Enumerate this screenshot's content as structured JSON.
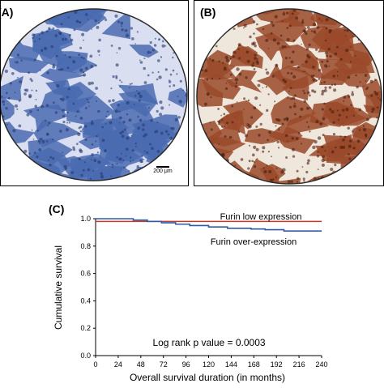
{
  "panels": {
    "a": {
      "label": "(A)",
      "scale_bar": "200 μm"
    },
    "b": {
      "label": "(B)"
    },
    "c": {
      "label": "(C)"
    }
  },
  "colors": {
    "stain_a_tissue": "#4a6bb0",
    "stain_b_tissue": "#9a4a2a",
    "low_expression_line": "#c0392b",
    "over_expression_line": "#2f5aa8"
  },
  "chart_data": {
    "type": "line",
    "title": "",
    "xlabel": "Overall survival duration (in months)",
    "ylabel": "Cumulative survival",
    "xlim": [
      0,
      240
    ],
    "ylim": [
      0.0,
      1.0
    ],
    "xticks": [
      0,
      24,
      48,
      72,
      96,
      120,
      144,
      168,
      192,
      216,
      240
    ],
    "yticks": [
      "0.0",
      "0.2",
      "0.4",
      "0.6",
      "0.8",
      "1.0"
    ],
    "series": [
      {
        "name": "Furin low expression",
        "x": [
          0,
          240
        ],
        "y": [
          0.98,
          0.98
        ]
      },
      {
        "name": "Furin over-expression",
        "x": [
          0,
          20,
          40,
          55,
          70,
          85,
          100,
          120,
          140,
          165,
          180,
          200,
          240
        ],
        "y": [
          1.0,
          1.0,
          0.99,
          0.98,
          0.97,
          0.96,
          0.95,
          0.94,
          0.93,
          0.925,
          0.92,
          0.91,
          0.91
        ]
      }
    ],
    "annotation": "Log rank p value = 0.0003"
  }
}
